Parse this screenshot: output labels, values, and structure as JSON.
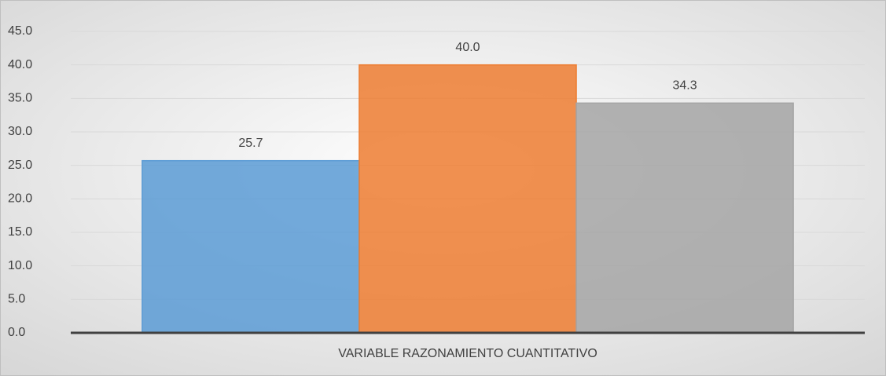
{
  "chart_data": {
    "type": "bar",
    "categories": [
      "VARIABLE RAZONAMIENTO CUANTITATIVO"
    ],
    "series": [
      {
        "color": "#5b9bd5",
        "values": [
          25.7
        ],
        "value_labels": [
          "25.7"
        ]
      },
      {
        "color": "#ed7d31",
        "values": [
          40.0
        ],
        "value_labels": [
          "40.0"
        ]
      },
      {
        "color": "#a5a5a5",
        "values": [
          34.3
        ],
        "value_labels": [
          "34.3"
        ]
      }
    ],
    "ylim": [
      0,
      45
    ],
    "yticks": [
      {
        "value": 0,
        "label": "0.0"
      },
      {
        "value": 5,
        "label": "5.0"
      },
      {
        "value": 10,
        "label": "10.0"
      },
      {
        "value": 15,
        "label": "15.0"
      },
      {
        "value": 20,
        "label": "20.0"
      },
      {
        "value": 25,
        "label": "25.0"
      },
      {
        "value": 30,
        "label": "30.0"
      },
      {
        "value": 35,
        "label": "35.0"
      },
      {
        "value": 40,
        "label": "40.0"
      },
      {
        "value": 45,
        "label": "45.0"
      }
    ],
    "grid": true
  }
}
